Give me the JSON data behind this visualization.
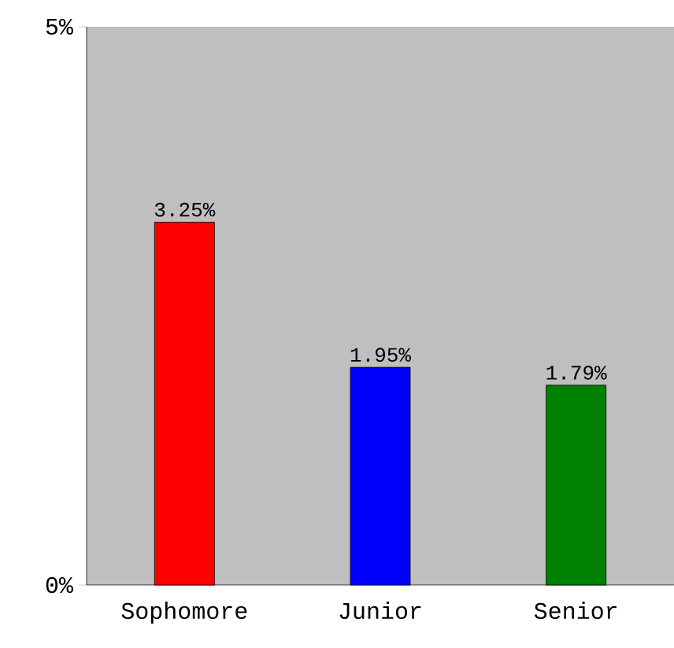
{
  "chart_data": {
    "type": "bar",
    "categories": [
      "Sophomore",
      "Junior",
      "Senior"
    ],
    "values": [
      3.25,
      1.95,
      1.79
    ],
    "colors": [
      "#ff0000",
      "#0000ff",
      "#008000"
    ],
    "value_labels": [
      "3.25%",
      "1.95%",
      "1.79%"
    ],
    "ylim": [
      0,
      5
    ],
    "yticks": [
      {
        "value": 0,
        "label": "0%"
      },
      {
        "value": 5,
        "label": "5%"
      }
    ],
    "grid": false
  }
}
